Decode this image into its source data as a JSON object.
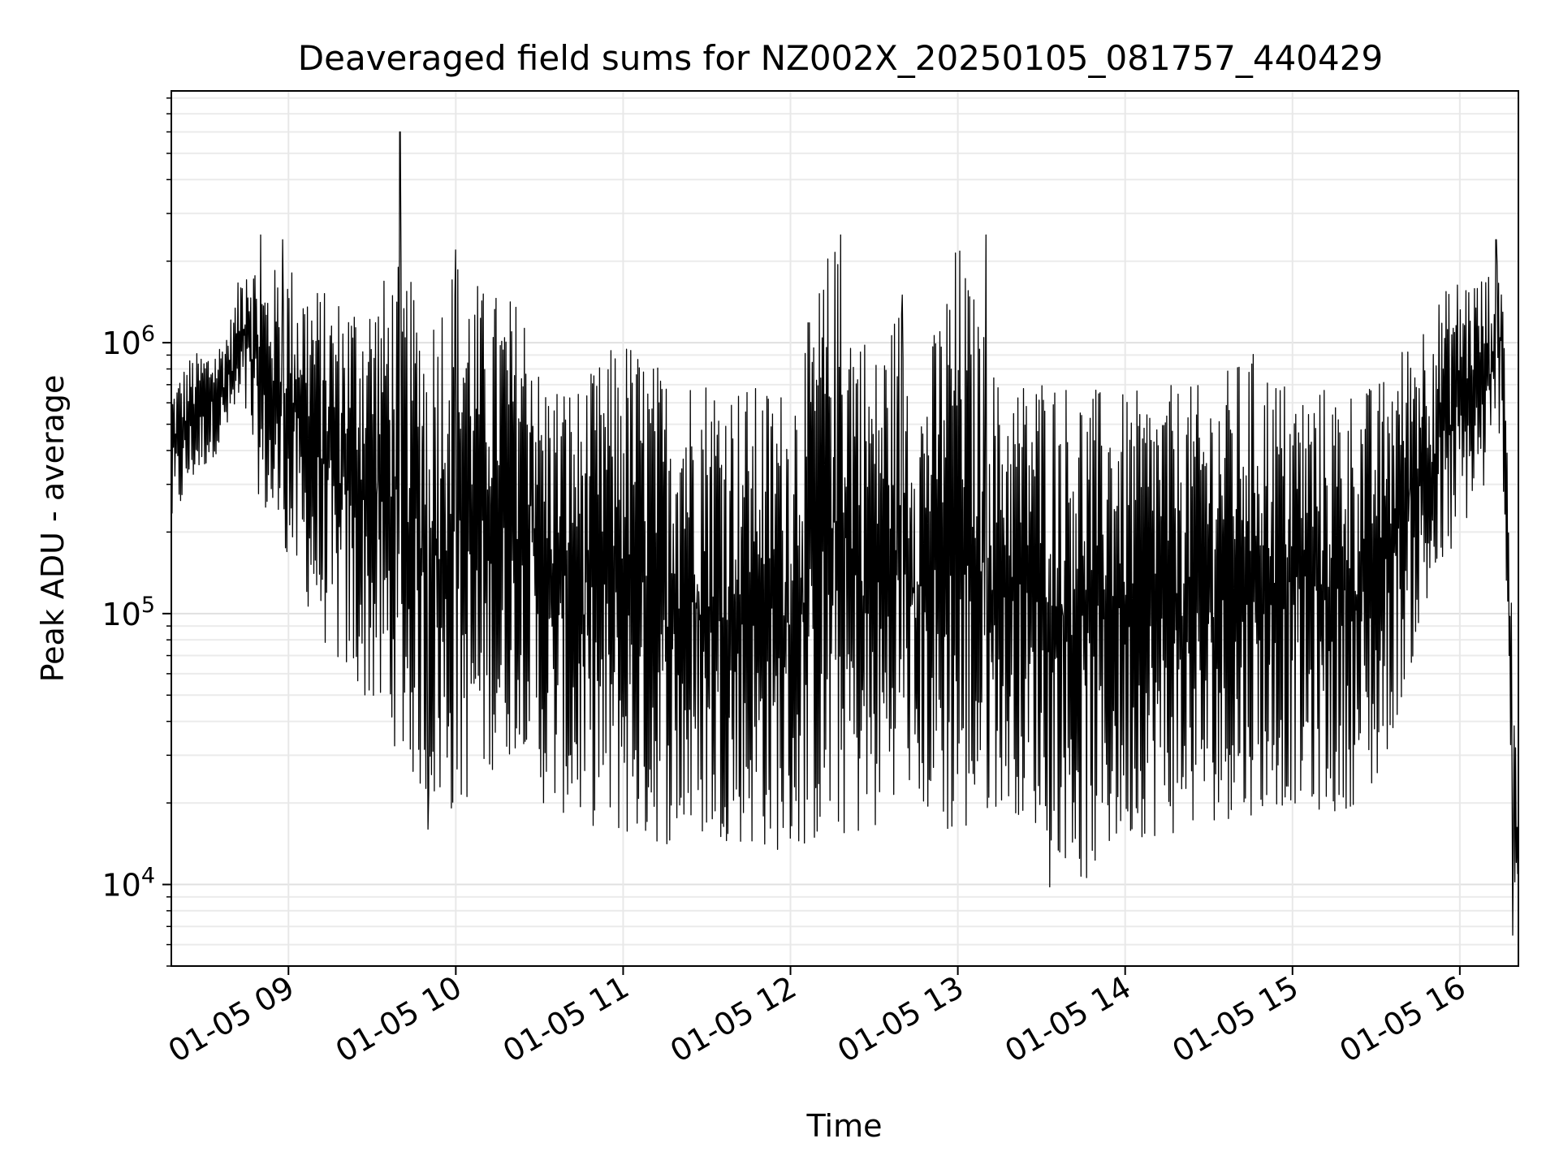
{
  "chart_data": {
    "type": "line",
    "title": "Deaveraged field sums for NZ002X_20250105_081757_440429",
    "xlabel": "Time",
    "ylabel": "Peak ADU - average",
    "x_range": [
      "2025-01-05 08:18",
      "2025-01-05 16:21"
    ],
    "y_scale": "log",
    "ylim": [
      5000,
      8500000
    ],
    "grid": true,
    "line_color": "#000000",
    "x_ticks": [
      "01-05 09",
      "01-05 10",
      "01-05 11",
      "01-05 12",
      "01-05 13",
      "01-05 14",
      "01-05 15",
      "01-05 16"
    ],
    "y_ticks": [
      {
        "value": 10000,
        "mantissa": "10",
        "exponent": "4"
      },
      {
        "value": 100000,
        "mantissa": "10",
        "exponent": "5"
      },
      {
        "value": 1000000,
        "mantissa": "10",
        "exponent": "6"
      }
    ],
    "series": [
      {
        "x": [
          "2025-01-05 08:18",
          "2025-01-05 08:25",
          "2025-01-05 08:35",
          "2025-01-05 08:40",
          "2025-01-05 08:45",
          "2025-01-05 08:50",
          "2025-01-05 09:00",
          "2025-01-05 09:15",
          "2025-01-05 09:30",
          "2025-01-05 09:40",
          "2025-01-05 09:50",
          "2025-01-05 10:00",
          "2025-01-05 10:10",
          "2025-01-05 10:20",
          "2025-01-05 10:27",
          "2025-01-05 10:30",
          "2025-01-05 10:45",
          "2025-01-05 11:00",
          "2025-01-05 11:15",
          "2025-01-05 11:30",
          "2025-01-05 11:45",
          "2025-01-05 12:00",
          "2025-01-05 12:15",
          "2025-01-05 12:30",
          "2025-01-05 12:40",
          "2025-01-05 12:45",
          "2025-01-05 13:00",
          "2025-01-05 13:15",
          "2025-01-05 13:30",
          "2025-01-05 13:45",
          "2025-01-05 14:00",
          "2025-01-05 14:15",
          "2025-01-05 14:30",
          "2025-01-05 14:45",
          "2025-01-05 15:00",
          "2025-01-05 15:15",
          "2025-01-05 15:30",
          "2025-01-05 15:45",
          "2025-01-05 16:00",
          "2025-01-05 16:10",
          "2025-01-05 16:15",
          "2025-01-05 16:20"
        ],
        "low": [
          200000,
          300000,
          400000,
          500000,
          500000,
          250000,
          150000,
          70000,
          45000,
          30000,
          20000,
          18000,
          25000,
          30000,
          35000,
          20000,
          17000,
          15000,
          14000,
          15000,
          14000,
          13000,
          15000,
          15000,
          25000,
          20000,
          14000,
          20000,
          16000,
          10000,
          15000,
          15000,
          17000,
          18000,
          20000,
          18000,
          22000,
          80000,
          200000,
          300000,
          500000,
          6500
        ],
        "high": [
          700000,
          900000,
          1000000,
          1300000,
          2500000,
          1800000,
          2000000,
          1500000,
          1600000,
          2000000,
          1300000,
          2200000,
          1600000,
          1500000,
          1400000,
          800000,
          700000,
          1100000,
          800000,
          800000,
          700000,
          700000,
          2500000,
          900000,
          1500000,
          600000,
          2500000,
          700000,
          800000,
          700000,
          650000,
          700000,
          700000,
          950000,
          700000,
          700000,
          700000,
          1200000,
          1800000,
          1800000,
          2500000,
          35000
        ],
        "spikes": [
          {
            "x": "2025-01-05 08:50",
            "y": 2500000
          },
          {
            "x": "2025-01-05 08:58",
            "y": 2400000
          },
          {
            "x": "2025-01-05 09:40",
            "y": 6000000
          },
          {
            "x": "2025-01-05 10:00",
            "y": 2200000
          },
          {
            "x": "2025-01-05 12:18",
            "y": 2500000
          },
          {
            "x": "2025-01-05 12:40",
            "y": 1500000
          },
          {
            "x": "2025-01-05 13:10",
            "y": 2500000
          },
          {
            "x": "2025-01-05 16:13",
            "y": 2400000
          },
          {
            "x": "2025-01-05 09:50",
            "y": 16000
          },
          {
            "x": "2025-01-05 13:33",
            "y": 9800
          },
          {
            "x": "2025-01-05 16:19",
            "y": 6500
          }
        ]
      }
    ]
  }
}
